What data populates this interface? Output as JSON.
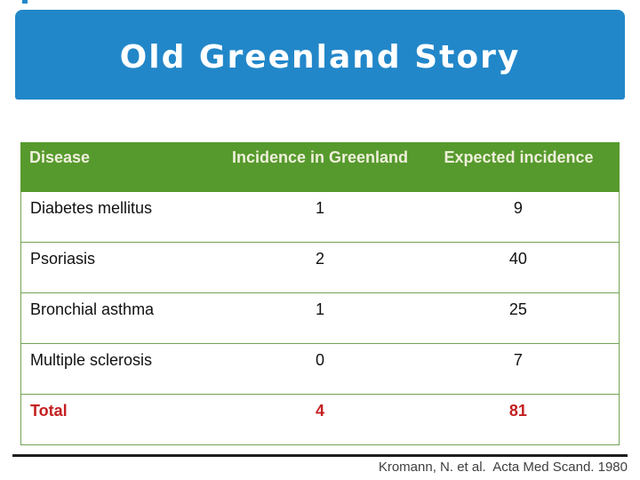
{
  "slide": {
    "title": "Old Greenland Story",
    "footer_citation": "Kromann, N. et al.  Acta Med Scand. 1980"
  },
  "table": {
    "columns": [
      "Disease",
      "Incidence in Greenland",
      "Expected incidence"
    ],
    "rows": [
      {
        "disease": "Diabetes mellitus",
        "incidence": "1",
        "expected": "9"
      },
      {
        "disease": "Psoriasis",
        "incidence": "2",
        "expected": "40"
      },
      {
        "disease": "Bronchial asthma",
        "incidence": "1",
        "expected": "25"
      },
      {
        "disease": "Multiple sclerosis",
        "incidence": "0",
        "expected": "7"
      }
    ],
    "total_row": {
      "disease": "Total",
      "incidence": "4",
      "expected": "81"
    }
  },
  "colors": {
    "banner_blue": "#2287C9",
    "header_green": "#569A2D",
    "header_text": "#EFEFDB",
    "border_green": "#74A354",
    "total_red": "#C42020"
  }
}
